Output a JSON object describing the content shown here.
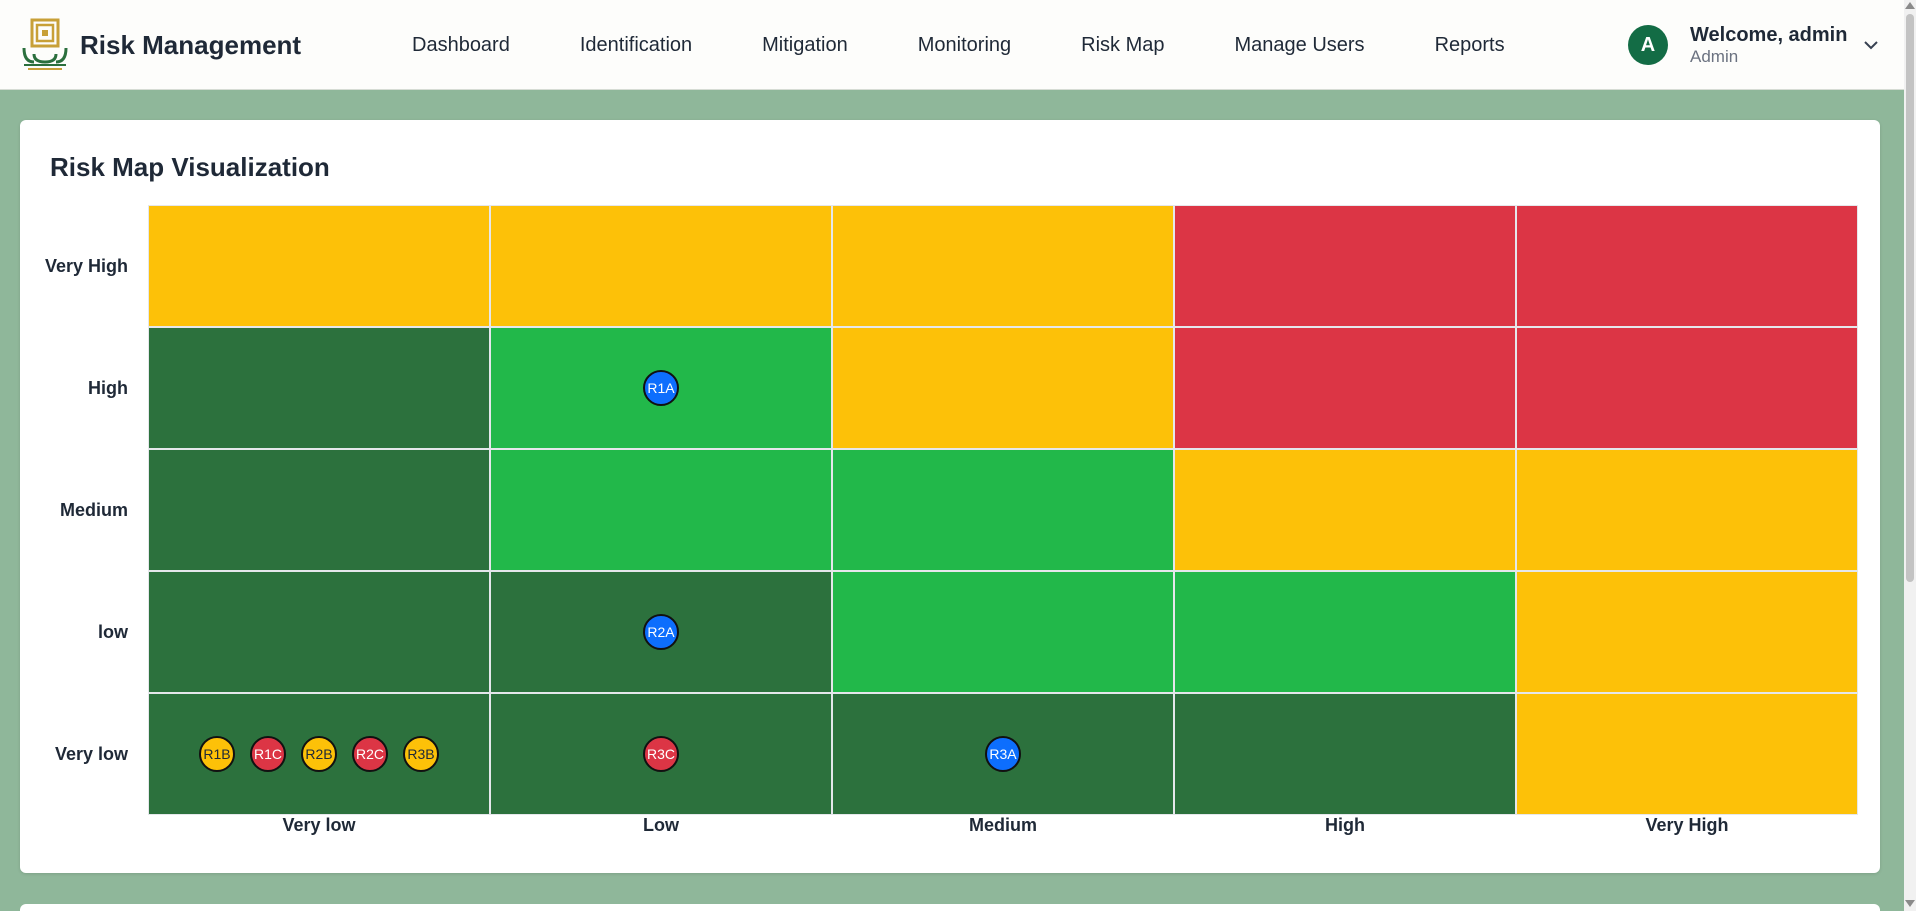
{
  "app": {
    "title": "Risk Management"
  },
  "nav": {
    "items": [
      "Dashboard",
      "Identification",
      "Mitigation",
      "Monitoring",
      "Risk Map",
      "Manage Users",
      "Reports"
    ]
  },
  "user": {
    "initial": "A",
    "welcome": "Welcome, admin",
    "role": "Admin"
  },
  "risk_map": {
    "title": "Risk Map Visualization",
    "y_labels": [
      "Very High",
      "High",
      "Medium",
      "low",
      "Very low"
    ],
    "x_labels": [
      "Very low",
      "Low",
      "Medium",
      "High",
      "Very High"
    ],
    "colors": {
      "dark_green": "#2c713d",
      "green": "#22b84a",
      "yellow": "#fdc108",
      "red": "#dc3545",
      "blue": "#0d6efd"
    },
    "cells": [
      [
        "yellow",
        "yellow",
        "yellow",
        "red",
        "red"
      ],
      [
        "dark_green",
        "green",
        "yellow",
        "red",
        "red"
      ],
      [
        "dark_green",
        "green",
        "green",
        "yellow",
        "yellow"
      ],
      [
        "dark_green",
        "dark_green",
        "green",
        "green",
        "yellow"
      ],
      [
        "dark_green",
        "dark_green",
        "dark_green",
        "dark_green",
        "yellow"
      ]
    ],
    "markers": [
      {
        "label": "R1A",
        "row": 1,
        "col": 1,
        "color": "blue"
      },
      {
        "label": "R2A",
        "row": 3,
        "col": 1,
        "color": "blue"
      },
      {
        "label": "R1B",
        "row": 4,
        "col": 0,
        "color": "yellow"
      },
      {
        "label": "R1C",
        "row": 4,
        "col": 0,
        "color": "red"
      },
      {
        "label": "R2B",
        "row": 4,
        "col": 0,
        "color": "yellow"
      },
      {
        "label": "R2C",
        "row": 4,
        "col": 0,
        "color": "red"
      },
      {
        "label": "R3B",
        "row": 4,
        "col": 0,
        "color": "yellow"
      },
      {
        "label": "R3C",
        "row": 4,
        "col": 1,
        "color": "red"
      },
      {
        "label": "R3A",
        "row": 4,
        "col": 2,
        "color": "blue"
      }
    ]
  }
}
